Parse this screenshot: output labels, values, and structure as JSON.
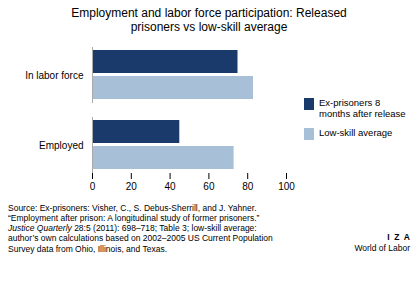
{
  "chart_data": {
    "type": "bar",
    "orientation": "horizontal",
    "title": "Employment and labor force participation: Released\nprisoners vs low-skill average",
    "categories": [
      "Employed",
      "In labor force"
    ],
    "series": [
      {
        "name": "Ex-prisoners 8\nmonths after release",
        "color": "#1a3a6b",
        "values": [
          45,
          75
        ]
      },
      {
        "name": "Low-skill average",
        "color": "#a8bfd8",
        "values": [
          73,
          83
        ]
      }
    ],
    "xlim": [
      0,
      100
    ],
    "xticks": [
      0,
      20,
      40,
      60,
      80,
      100
    ],
    "grid": false,
    "legend": "right",
    "annotations": [
      "Source: Ex-prisoners: Visher, C., S. Debus-Sherrill, and J. Yahner.\n“Employment after prison: A longitudinal study of former prisoners.”",
      "Justice Quarterly",
      " 28:5 (2011): 698–718; Table 3; low-skill average:\nauthor’s own calculations based on 2002–2005 US Current Population\nSurvey data from Ohio, Illinois, and Texas.",
      "I  Z  A",
      "World of Labor"
    ]
  }
}
